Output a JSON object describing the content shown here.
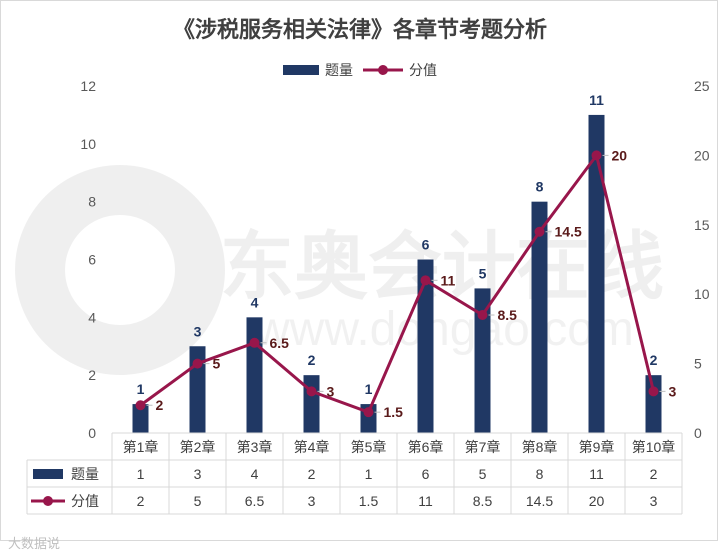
{
  "title": "《涉税服务相关法律》各章节考题分析",
  "source_label": "大数据说",
  "watermark": "东奥会计在线",
  "watermark_url": "www.dongao.com",
  "colors": {
    "bar": "#203864",
    "line": "#98164b",
    "grid": "#d9d9d9",
    "text": "#404040"
  },
  "chart_data": {
    "type": "bar",
    "title": "《涉税服务相关法律》各章节考题分析",
    "categories": [
      "第1章",
      "第2章",
      "第3章",
      "第4章",
      "第5章",
      "第6章",
      "第7章",
      "第8章",
      "第9章",
      "第10章"
    ],
    "series": [
      {
        "name": "题量",
        "type": "bar",
        "axis": "left",
        "values": [
          1,
          3,
          4,
          2,
          1,
          6,
          5,
          8,
          11,
          2
        ],
        "labels": [
          "1",
          "3",
          "4",
          "2",
          "1",
          "6",
          "5",
          "8",
          "11",
          "2"
        ]
      },
      {
        "name": "分值",
        "type": "line",
        "axis": "right",
        "values": [
          2,
          5,
          6.5,
          3,
          1.5,
          11,
          8.5,
          14.5,
          20,
          3
        ],
        "labels": [
          "2",
          "5",
          "6.5",
          "3",
          "1.5",
          "11",
          "8.5",
          "14.5",
          "20",
          "3"
        ]
      }
    ],
    "left_axis": {
      "ylim": [
        0,
        12
      ],
      "ticks": [
        "0",
        "2",
        "4",
        "6",
        "8",
        "10",
        "12"
      ]
    },
    "right_axis": {
      "ylim": [
        0,
        25
      ],
      "ticks": [
        "0",
        "5",
        "10",
        "15",
        "20",
        "25"
      ]
    },
    "legend": "top-center",
    "data_table": true
  }
}
